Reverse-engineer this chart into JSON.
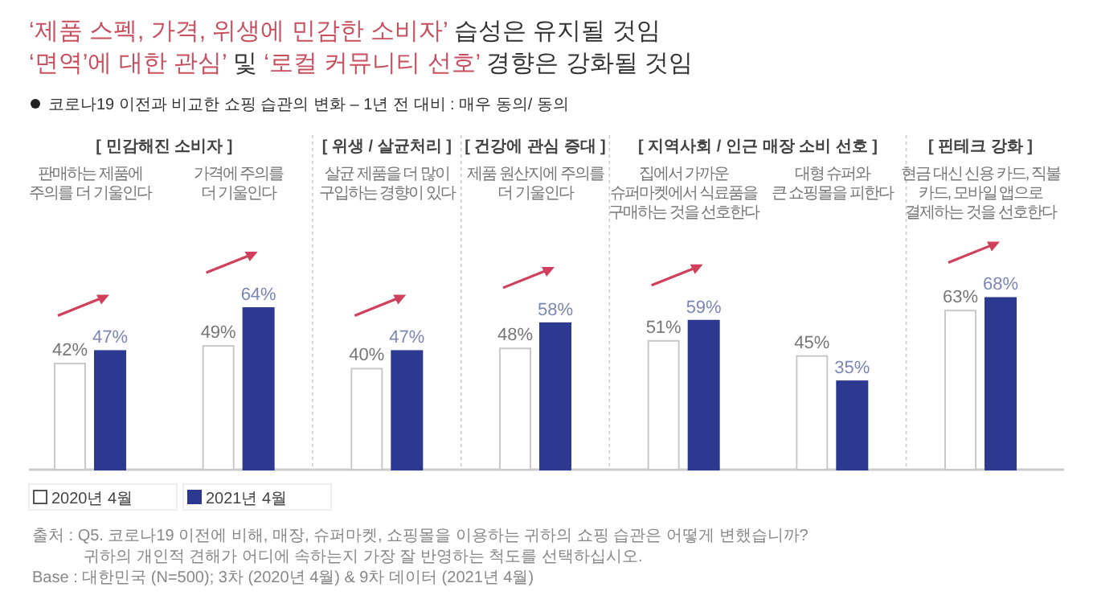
{
  "chart_data": {
    "type": "bar",
    "title": "‘제품 스펙, 가격, 위생에 민감한 소비자’ 습성은 유지될 것임\n‘면역’에 대한 관심’ 및 ‘로컬 커뮤니티 선호’ 경향은 강화될 것임",
    "subtitle": "코로나19 이전과 비교한 쇼핑 습관의 변화 – 1년 전 대비 : 매우 동의/ 동의",
    "categories": [
      "판매하는 제품에\n주의를 더 기울인다",
      "가격에 주의를\n더 기울인다",
      "살균 제품을 더 많이\n구입하는 경향이 있다",
      "제품 원산지에 주의를\n더 기울인다",
      "집에서 가까운\n슈퍼마켓에서 식료품을\n구매하는 것을 선호한다",
      "대형 슈퍼와\n큰 쇼핑몰을 피한다",
      "현금 대신 신용 카드, 직불\n카드, 모바일 앱으로\n결제하는 것을 선호한다"
    ],
    "series": [
      {
        "name": "2020년 4월",
        "color": "#ffffff",
        "values": [
          42,
          49,
          40,
          48,
          51,
          45,
          63
        ],
        "value_labels": [
          "42%",
          "49%",
          "40%",
          "48%",
          "51%",
          "45%",
          "63%"
        ]
      },
      {
        "name": "2021년 4월",
        "color": "#2b3990",
        "values": [
          47,
          64,
          47,
          58,
          59,
          35,
          68
        ],
        "value_labels": [
          "47%",
          "64%",
          "47%",
          "58%",
          "59%",
          "35%",
          "68%"
        ]
      }
    ],
    "annotations": [
      "[ 민감해진 소비자 ]",
      "[ 위생 / 살균처리 ]",
      "[ 건강에 관심 증대 ]",
      "[ 지역사회 / 인근 매장 소비 선호 ]",
      "[ 핀테크 강화 ]",
      "출처 : Q5. 코로나19 이전에 비해, 매장, 슈퍼마켓, 쇼핑몰을 이용하는 귀하의 쇼핑 습관은 어떻게 변했습니까?\n귀하의 개인적 견해가 어디에 속하는지 가장 잘 반영하는 척도를 선택하십시오.",
      "Base : 대한민국 (N=500); 3차 (2020년 4월) & 9차 데이터 (2021년 4월)"
    ],
    "legend": "bottom left"
  }
}
